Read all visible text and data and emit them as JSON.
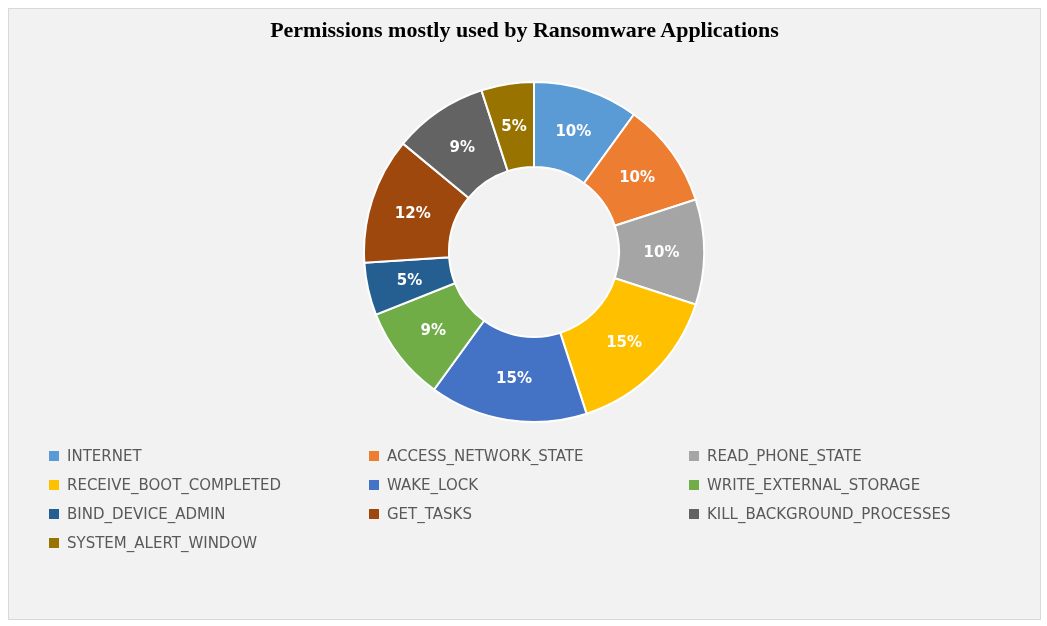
{
  "chart_data": {
    "type": "donut",
    "title": "Permissions mostly used by Ransomware Applications",
    "categories": [
      "INTERNET",
      "ACCESS_NETWORK_STATE",
      "READ_PHONE_STATE",
      "RECEIVE_BOOT_COMPLETED",
      "WAKE_LOCK",
      "WRITE_EXTERNAL_STORAGE",
      "BIND_DEVICE_ADMIN",
      "GET_TASKS",
      "KILL_BACKGROUND_PROCESSES",
      "SYSTEM_ALERT_WINDOW"
    ],
    "values": [
      10,
      10,
      10,
      15,
      15,
      9,
      5,
      12,
      9,
      5
    ],
    "colors": [
      "#5b9bd5",
      "#ed7d31",
      "#a5a5a5",
      "#ffc000",
      "#4472c4",
      "#70ad47",
      "#255e91",
      "#9e480e",
      "#636363",
      "#997300"
    ],
    "value_labels": [
      "10%",
      "10%",
      "10%",
      "15%",
      "15%",
      "9%",
      "5%",
      "12%",
      "9%",
      "5%"
    ],
    "legend": "bottom"
  }
}
